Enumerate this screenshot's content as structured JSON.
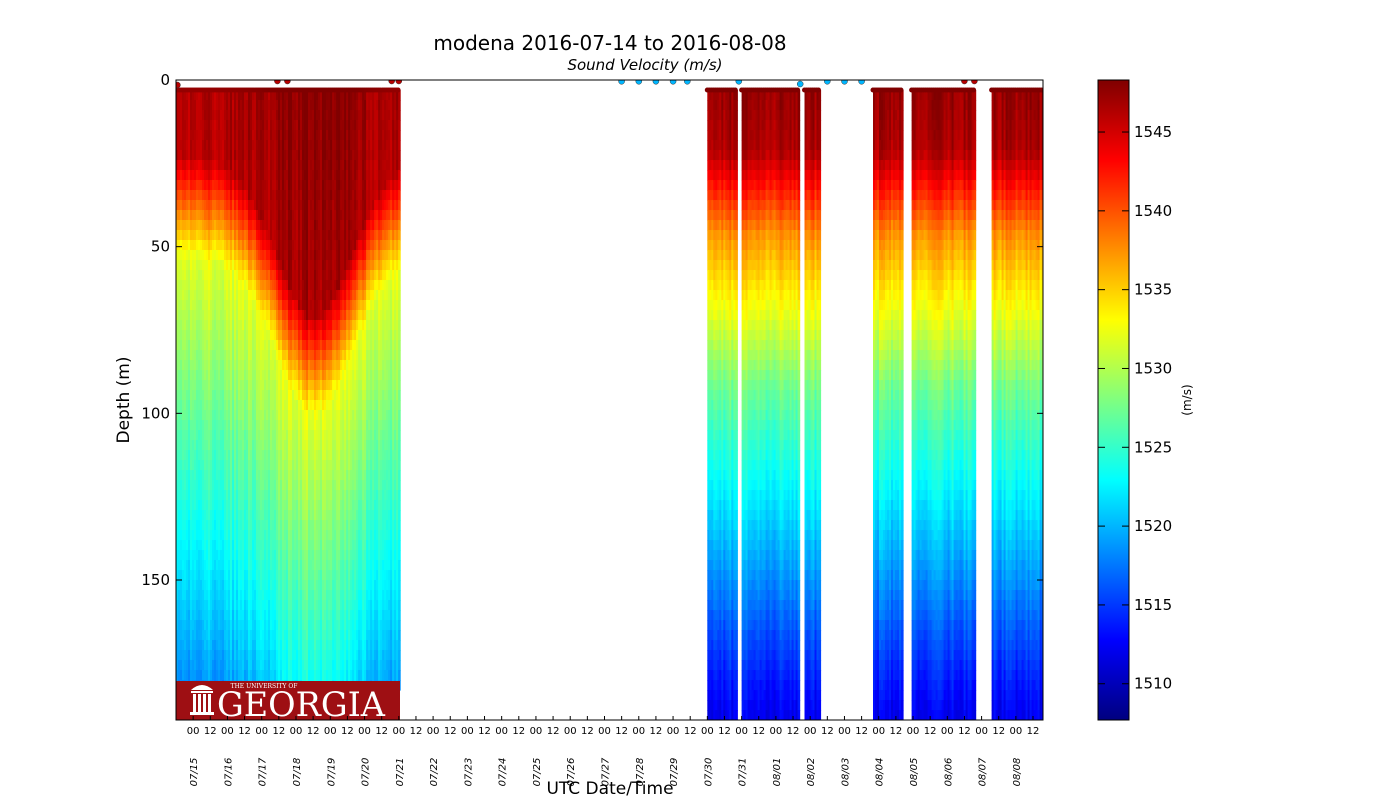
{
  "chart_data": {
    "type": "scatter",
    "title": "modena 2016-07-14 to 2016-08-08",
    "subtitle": "Sound Velocity (m/s)",
    "xlabel": "UTC Date/Time",
    "ylabel": "Depth (m)",
    "colorbar_label": "(m/s)",
    "colormap": "jet",
    "xlim": [
      "2016-07-14 12:00",
      "2016-08-08 19:00"
    ],
    "ylim": [
      192,
      0
    ],
    "clim": [
      1507.7,
      1548.3
    ],
    "y_ticks": [
      0,
      50,
      100,
      150
    ],
    "colorbar_ticks": [
      1510,
      1515,
      1520,
      1525,
      1530,
      1535,
      1540,
      1545
    ],
    "hour_tick_labels": [
      "00",
      "12"
    ],
    "date_ticks": [
      "07/15",
      "07/16",
      "07/17",
      "07/18",
      "07/19",
      "07/20",
      "07/21",
      "07/22",
      "07/23",
      "07/24",
      "07/25",
      "07/26",
      "07/27",
      "07/28",
      "07/29",
      "07/30",
      "07/31",
      "08/01",
      "08/02",
      "08/03",
      "08/04",
      "08/05",
      "08/06",
      "08/07",
      "08/08"
    ],
    "grid": false,
    "segments": [
      {
        "start": "2016-07-14 12:00",
        "end": "2016-07-18 22:00",
        "max_depth": 181,
        "profile": "warm-deep-mixed"
      },
      {
        "start": "2016-07-18 22:30",
        "end": "2016-07-21 00:30",
        "max_depth": 181,
        "profile": "warm-deep-mixed"
      },
      {
        "start": "2016-07-30 00:00",
        "end": "2016-07-30 20:00",
        "max_depth": 192,
        "profile": "stratified"
      },
      {
        "start": "2016-07-31 00:00",
        "end": "2016-08-01 16:00",
        "max_depth": 192,
        "profile": "stratified"
      },
      {
        "start": "2016-08-01 20:00",
        "end": "2016-08-02 06:00",
        "max_depth": 192,
        "profile": "stratified"
      },
      {
        "start": "2016-08-03 20:00",
        "end": "2016-08-04 16:00",
        "max_depth": 192,
        "profile": "stratified"
      },
      {
        "start": "2016-08-04 23:00",
        "end": "2016-08-06 19:00",
        "max_depth": 192,
        "profile": "stratified"
      },
      {
        "start": "2016-08-07 07:00",
        "end": "2016-08-08 19:00",
        "max_depth": 192,
        "profile": "stratified"
      }
    ],
    "surface_points": [
      {
        "x": "2016-07-14 13:00",
        "depth": 1.5,
        "velocity": 1546
      },
      {
        "x": "2016-07-17 11:00",
        "depth": 0.3,
        "velocity": 1546
      },
      {
        "x": "2016-07-17 18:00",
        "depth": 0.3,
        "velocity": 1546
      },
      {
        "x": "2016-07-20 19:00",
        "depth": 0.3,
        "velocity": 1546
      },
      {
        "x": "2016-07-21 00:00",
        "depth": 0.3,
        "velocity": 1546
      },
      {
        "x": "2016-07-27 12:00",
        "depth": 0.4,
        "velocity": 1520
      },
      {
        "x": "2016-07-28 00:00",
        "depth": 0.4,
        "velocity": 1520
      },
      {
        "x": "2016-07-28 12:00",
        "depth": 0.4,
        "velocity": 1520
      },
      {
        "x": "2016-07-29 00:00",
        "depth": 0.4,
        "velocity": 1520
      },
      {
        "x": "2016-07-29 10:00",
        "depth": 0.4,
        "velocity": 1520
      },
      {
        "x": "2016-07-30 22:00",
        "depth": 0.4,
        "velocity": 1520
      },
      {
        "x": "2016-08-01 17:00",
        "depth": 1.2,
        "velocity": 1520
      },
      {
        "x": "2016-08-02 12:00",
        "depth": 0.4,
        "velocity": 1520
      },
      {
        "x": "2016-08-03 00:00",
        "depth": 0.4,
        "velocity": 1520
      },
      {
        "x": "2016-08-03 12:00",
        "depth": 0.4,
        "velocity": 1520
      },
      {
        "x": "2016-08-06 12:00",
        "depth": 0.3,
        "velocity": 1546
      },
      {
        "x": "2016-08-06 19:00",
        "depth": 0.3,
        "velocity": 1546
      }
    ]
  },
  "logo": {
    "small_text": "THE UNIVERSITY OF",
    "big_text": "GEORGIA",
    "color": "#9e0f13"
  }
}
